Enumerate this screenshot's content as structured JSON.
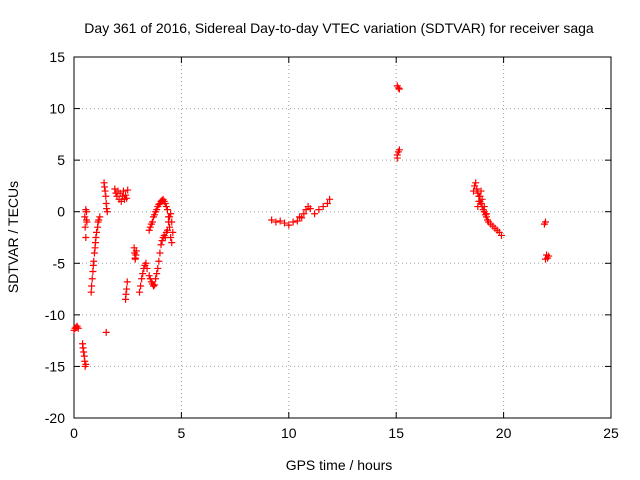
{
  "chart_data": {
    "type": "scatter",
    "title": "Day 361 of 2016, Sidereal Day-to-day VTEC variation (SDTVAR) for receiver saga",
    "xlabel": "GPS time / hours",
    "ylabel": "SDTVAR / TECUs",
    "xlim": [
      0,
      25
    ],
    "ylim": [
      -20,
      15
    ],
    "xticks": [
      0,
      5,
      10,
      15,
      20,
      25
    ],
    "yticks": [
      -20,
      -15,
      -10,
      -5,
      0,
      5,
      10,
      15
    ],
    "xtick_labels": [
      "0",
      "5",
      "10",
      "15",
      "20",
      "25"
    ],
    "ytick_labels": [
      "-20",
      "-15",
      "-10",
      "-5",
      "0",
      "5",
      "10",
      "15"
    ],
    "grid": true,
    "marker": "+",
    "marker_color": "#ff0000",
    "series": [
      {
        "name": "SDTVAR",
        "x": [
          0.0,
          0.05,
          0.1,
          0.15,
          0.2,
          0.4,
          0.42,
          0.45,
          0.48,
          0.5,
          0.52,
          0.55,
          0.5,
          0.52,
          0.55,
          0.58,
          0.6,
          0.55,
          0.58,
          0.8,
          0.82,
          0.85,
          0.88,
          0.9,
          0.92,
          0.95,
          0.98,
          1.0,
          1.02,
          1.05,
          1.1,
          1.12,
          1.15,
          1.2,
          1.4,
          1.42,
          1.45,
          1.48,
          1.5,
          1.52,
          1.55,
          1.5,
          1.9,
          1.95,
          2.0,
          2.05,
          2.1,
          2.15,
          2.2,
          2.25,
          2.3,
          2.35,
          2.4,
          2.45,
          2.5,
          2.4,
          2.42,
          2.45,
          2.48,
          2.8,
          2.82,
          2.85,
          2.88,
          2.9,
          2.85,
          3.05,
          3.1,
          3.15,
          3.2,
          3.25,
          3.3,
          3.35,
          3.4,
          3.5,
          3.55,
          3.6,
          3.65,
          3.7,
          3.75,
          3.8,
          3.85,
          3.9,
          3.95,
          4.0,
          4.05,
          4.1,
          4.15,
          4.2,
          4.25,
          4.3,
          4.35,
          4.4,
          4.45,
          4.5,
          4.55,
          4.6,
          3.5,
          3.55,
          3.6,
          3.65,
          3.7,
          3.75,
          3.8,
          3.85,
          3.9,
          3.95,
          4.0,
          4.05,
          4.1,
          4.15,
          4.2,
          4.25,
          4.3,
          4.35,
          4.4,
          4.45,
          4.5,
          4.55,
          9.2,
          9.4,
          9.6,
          9.8,
          10.0,
          10.2,
          10.4,
          10.5,
          10.6,
          10.7,
          10.8,
          10.9,
          11.0,
          11.2,
          11.4,
          11.6,
          11.8,
          11.9,
          15.05,
          15.1,
          15.15,
          15.05,
          15.1,
          15.15,
          15.05,
          18.6,
          18.65,
          18.7,
          18.75,
          18.8,
          18.85,
          18.9,
          18.95,
          19.0,
          19.05,
          19.1,
          19.15,
          19.2,
          19.25,
          19.3,
          19.4,
          19.5,
          19.6,
          19.7,
          19.8,
          19.9,
          18.8,
          18.85,
          18.9,
          18.95,
          19.0,
          19.1,
          19.2,
          21.9,
          21.95,
          22.0,
          22.05,
          22.1,
          21.95
        ],
        "y": [
          -11.5,
          -11.3,
          -11.2,
          -11.1,
          -11.3,
          -12.8,
          -13.2,
          -13.6,
          -14.0,
          -14.5,
          -15.0,
          -14.8,
          -0.5,
          -1.5,
          -2.5,
          0.0,
          -1.0,
          0.2,
          -0.8,
          -7.8,
          -7.2,
          -6.5,
          -5.8,
          -5.2,
          -4.8,
          -4.0,
          -3.5,
          -3.0,
          -2.5,
          -2.0,
          -1.5,
          -1.0,
          -0.8,
          -0.5,
          2.8,
          2.4,
          2.0,
          1.5,
          0.8,
          0.3,
          0.0,
          -11.7,
          2.2,
          1.8,
          1.5,
          2.0,
          1.2,
          1.8,
          1.0,
          1.5,
          2.0,
          1.2,
          1.6,
          1.3,
          2.1,
          -8.5,
          -8.0,
          -7.5,
          -6.8,
          -3.5,
          -4.0,
          -4.5,
          -4.2,
          -3.8,
          -4.6,
          -7.8,
          -7.2,
          -6.5,
          -6.0,
          -5.5,
          -5.2,
          -5.0,
          -5.5,
          -6.2,
          -6.5,
          -6.8,
          -7.0,
          -7.2,
          -7.1,
          -6.5,
          -6.0,
          -5.5,
          -4.8,
          -4.0,
          -3.2,
          -2.8,
          -2.5,
          -2.3,
          -2.5,
          -2.0,
          -1.8,
          -1.0,
          -0.5,
          -0.2,
          -1.0,
          -2.0,
          -1.8,
          -1.5,
          -1.2,
          -1.0,
          -0.5,
          -0.3,
          0.0,
          0.2,
          0.5,
          0.7,
          0.8,
          1.0,
          1.1,
          1.2,
          1.0,
          0.8,
          0.5,
          0.2,
          -0.5,
          -1.5,
          -2.5,
          -3.0,
          -0.8,
          -1.0,
          -0.9,
          -1.1,
          -1.3,
          -1.0,
          -0.9,
          -0.5,
          -0.6,
          -0.2,
          0.2,
          0.5,
          0.3,
          -0.2,
          0.2,
          0.5,
          0.8,
          1.2,
          12.2,
          12.0,
          11.9,
          5.5,
          5.8,
          6.0,
          5.2,
          2.0,
          2.5,
          2.8,
          2.2,
          1.8,
          1.5,
          1.0,
          0.8,
          0.5,
          0.2,
          0.0,
          -0.3,
          -0.5,
          -0.8,
          -1.0,
          -1.2,
          -1.4,
          -1.6,
          -1.8,
          -2.0,
          -2.3,
          0.5,
          1.0,
          1.5,
          2.0,
          1.2,
          0.5,
          -0.2,
          -1.2,
          -1.0,
          -4.2,
          -4.5,
          -4.3,
          -4.6
        ]
      }
    ]
  }
}
